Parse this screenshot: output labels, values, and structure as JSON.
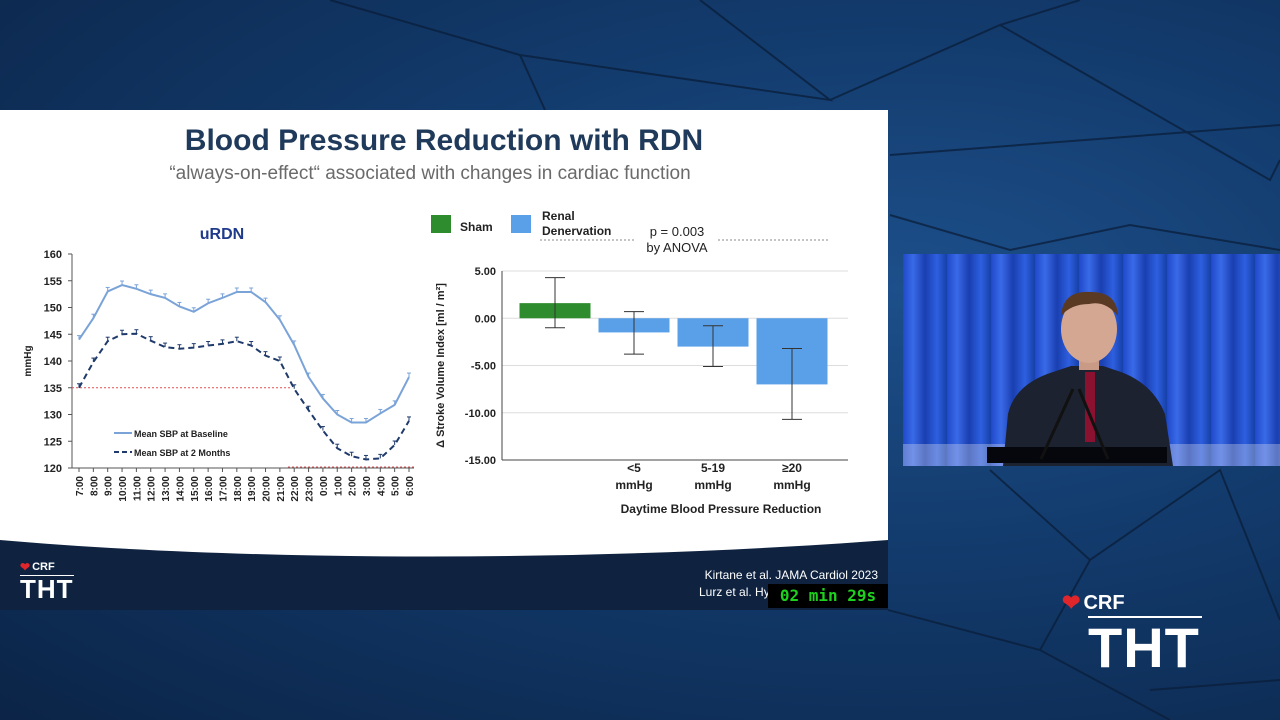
{
  "slide": {
    "title": "Blood Pressure Reduction with RDN",
    "subtitle": "“always-on-effect“ associated with changes in cardiac function",
    "references": [
      "Kirtane et al. JAMA Cardiol 2023",
      "Lurz et al. Hy"
    ]
  },
  "timer": {
    "text": "02 min 29s"
  },
  "logos": {
    "crf": "CRF",
    "tht": "THT"
  },
  "colors": {
    "title": "#1f3a5a",
    "sham": "#2e8b2e",
    "rdn": "#5aa0e8",
    "baseline_line": "#7aa3d8",
    "followup_line": "#1f3a6b",
    "timer_text": "#1fd11f"
  },
  "chart_data": [
    {
      "type": "line",
      "title": "uRDN",
      "ylabel": "mmHg",
      "ylim": [
        120,
        160
      ],
      "yticks": [
        120,
        125,
        130,
        135,
        140,
        145,
        150,
        155,
        160
      ],
      "categories": [
        "7:00",
        "8:00",
        "9:00",
        "10:00",
        "11:00",
        "12:00",
        "13:00",
        "14:00",
        "15:00",
        "16:00",
        "17:00",
        "18:00",
        "19:00",
        "20:00",
        "21:00",
        "22:00",
        "23:00",
        "0:00",
        "1:00",
        "2:00",
        "3:00",
        "4:00",
        "5:00",
        "6:00"
      ],
      "series": [
        {
          "name": "Mean SBP at Baseline",
          "style": "solid",
          "values": [
            144,
            148,
            153,
            154.2,
            153.5,
            152.5,
            151.8,
            150.2,
            149.2,
            150.8,
            151.8,
            152.9,
            152.9,
            151,
            147.7,
            143,
            137,
            133,
            130,
            128.5,
            128.5,
            130.2,
            131.8,
            137
          ]
        },
        {
          "name": "Mean SBP at 2 Months",
          "style": "dashed",
          "values": [
            135,
            139.8,
            143.7,
            145,
            145.1,
            143.8,
            142.6,
            142.3,
            142.5,
            142.9,
            143.2,
            143.7,
            142.9,
            141,
            140,
            134.8,
            130.8,
            127,
            123.7,
            122.2,
            121.6,
            121.8,
            124.3,
            128.8
          ]
        }
      ],
      "reference_line": 135
    },
    {
      "type": "bar",
      "ylabel": "Δ Stroke Volume Index [ml / m²]",
      "xlabel": "Daytime Blood Pressure Reduction",
      "ylim": [
        -15,
        5
      ],
      "yticks": [
        "5.00",
        "0.00",
        "-5.00",
        "-10.00",
        "-15.00"
      ],
      "legend": [
        "Sham",
        "Renal Denervation"
      ],
      "annotation": [
        "p = 0.003",
        "by ANOVA"
      ],
      "categories": [
        "",
        "<5 mmHg",
        "5-19 mmHg",
        "≥20 mmHg"
      ],
      "category_lines": [
        [
          "",
          ""
        ],
        [
          "<5",
          "mmHg"
        ],
        [
          "5-19",
          "mmHg"
        ],
        [
          "≥20",
          "mmHg"
        ]
      ],
      "bars": [
        {
          "group": "Sham",
          "value": 1.6,
          "err_low": -1.0,
          "err_high": 4.3
        },
        {
          "group": "Renal Denervation",
          "value": -1.5,
          "err_low": -3.8,
          "err_high": 0.7
        },
        {
          "group": "Renal Denervation",
          "value": -3.0,
          "err_low": -5.1,
          "err_high": -0.8
        },
        {
          "group": "Renal Denervation",
          "value": -7.0,
          "err_low": -10.7,
          "err_high": -3.2
        }
      ]
    }
  ]
}
